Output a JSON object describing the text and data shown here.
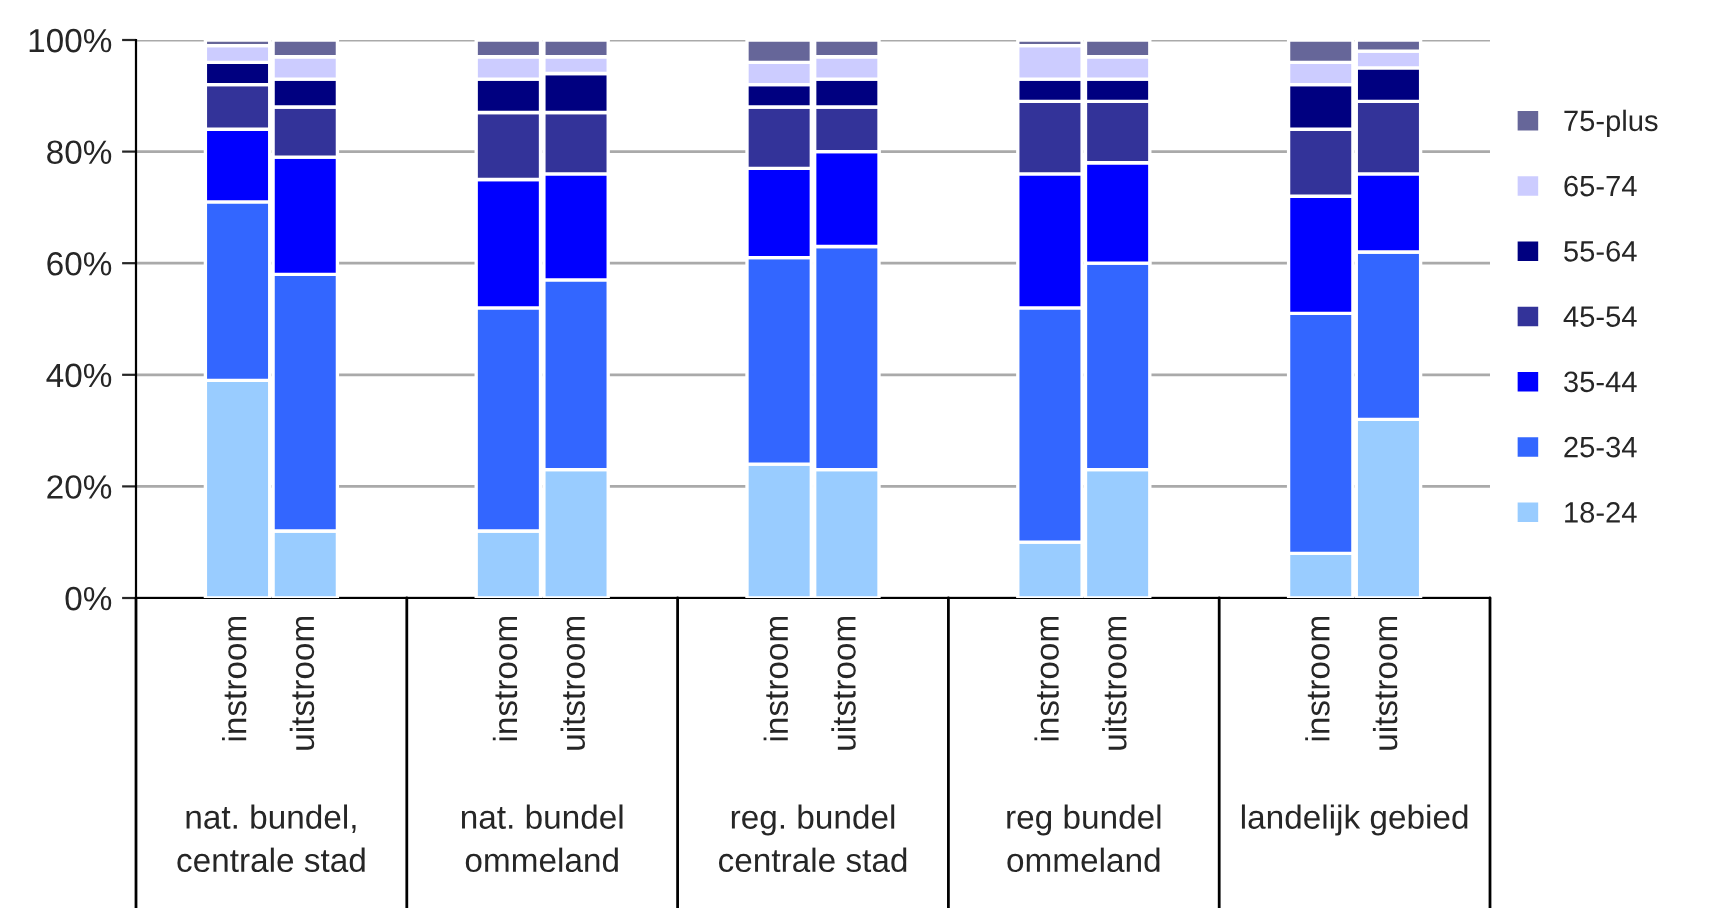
{
  "chart_data": {
    "type": "bar",
    "stacked": true,
    "categories": [
      "instroom",
      "uitstroom",
      "instroom",
      "uitstroom",
      "instroom",
      "uitstroom",
      "instroom",
      "uitstroom",
      "instroom",
      "uitstroom"
    ],
    "annotations": [
      "nat. bundel,\ncentrale stad",
      "nat. bundel\nommeland",
      "reg. bundel\ncentrale stad",
      "reg bundel\nommeland",
      "landelijk gebied"
    ],
    "series": [
      {
        "name": "18-24",
        "color": "#99ccff",
        "values": [
          39,
          12,
          12,
          23,
          24,
          23,
          10,
          23,
          8,
          32
        ]
      },
      {
        "name": "25-34",
        "color": "#3366ff",
        "values": [
          32,
          46,
          40,
          34,
          37,
          40,
          42,
          37,
          43,
          30
        ]
      },
      {
        "name": "35-44",
        "color": "#0000ff",
        "values": [
          13,
          21,
          23,
          19,
          16,
          17,
          24,
          18,
          21,
          14
        ]
      },
      {
        "name": "45-54",
        "color": "#333399",
        "values": [
          8,
          9,
          12,
          11,
          11,
          8,
          13,
          11,
          12,
          13
        ]
      },
      {
        "name": "55-64",
        "color": "#000080",
        "values": [
          4,
          5,
          6,
          7,
          4,
          5,
          4,
          4,
          8,
          6
        ]
      },
      {
        "name": "65-74",
        "color": "#ccccff",
        "values": [
          3,
          4,
          4,
          3,
          4,
          4,
          6,
          4,
          4,
          3
        ]
      },
      {
        "name": "75-plus",
        "color": "#666699",
        "values": [
          1,
          3,
          3,
          3,
          4,
          3,
          1,
          3,
          4,
          2
        ]
      }
    ],
    "ylim": [
      0,
      100
    ],
    "yticks": [
      {
        "value": 0,
        "label": "0%"
      },
      {
        "value": 20,
        "label": "20%"
      },
      {
        "value": 40,
        "label": "40%"
      },
      {
        "value": 60,
        "label": "60%"
      },
      {
        "value": 80,
        "label": "80%"
      },
      {
        "value": 100,
        "label": "100%"
      }
    ],
    "grid": "y",
    "legend": "right"
  }
}
